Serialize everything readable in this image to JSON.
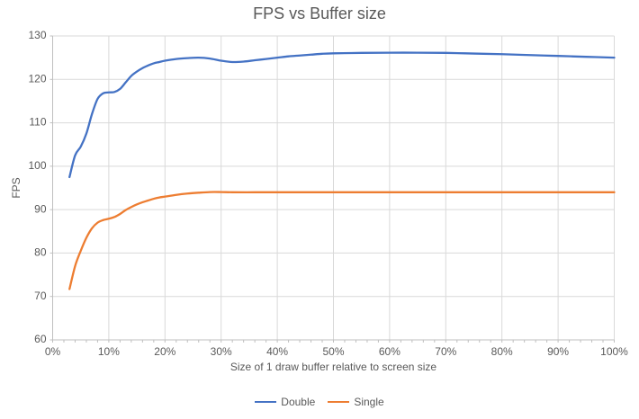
{
  "colors": {
    "background": "#FFFFFF",
    "grid": "#D9D9D9",
    "axis": "#BFBFBF",
    "text": "#595959",
    "series_double": "#4472C4",
    "series_single": "#ED7D31"
  },
  "chart_data": {
    "type": "line",
    "title": "FPS vs Buffer size",
    "xlabel": "Size of 1 draw buffer relative to screen size",
    "ylabel": "FPS",
    "xlim": [
      0,
      100
    ],
    "ylim": [
      60,
      130
    ],
    "grid": true,
    "legend_position": "bottom",
    "x_tick_values": [
      0,
      10,
      20,
      30,
      40,
      50,
      60,
      70,
      80,
      90,
      100
    ],
    "x_ticks": [
      "0%",
      "10%",
      "20%",
      "30%",
      "40%",
      "50%",
      "60%",
      "70%",
      "80%",
      "90%",
      "100%"
    ],
    "x_minor_tick_step_pct": 2,
    "y_ticks": [
      60,
      70,
      80,
      90,
      100,
      110,
      120,
      130
    ],
    "line_style": "smooth",
    "series": [
      {
        "name": "Double",
        "color": "#4472C4",
        "points": [
          [
            3,
            97.5
          ],
          [
            4,
            102.5
          ],
          [
            5,
            104.5
          ],
          [
            6,
            107.5
          ],
          [
            7,
            112
          ],
          [
            8,
            115.5
          ],
          [
            9,
            116.8
          ],
          [
            10,
            117
          ],
          [
            11,
            117.1
          ],
          [
            12,
            117.8
          ],
          [
            13,
            119.3
          ],
          [
            14,
            120.8
          ],
          [
            15,
            121.8
          ],
          [
            16,
            122.6
          ],
          [
            17,
            123.2
          ],
          [
            18,
            123.7
          ],
          [
            19,
            124
          ],
          [
            20,
            124.3
          ],
          [
            22,
            124.7
          ],
          [
            24,
            124.9
          ],
          [
            26,
            125
          ],
          [
            28,
            124.8
          ],
          [
            30,
            124.3
          ],
          [
            32,
            124
          ],
          [
            34,
            124.1
          ],
          [
            36,
            124.4
          ],
          [
            38,
            124.7
          ],
          [
            40,
            125
          ],
          [
            42,
            125.3
          ],
          [
            44,
            125.5
          ],
          [
            46,
            125.7
          ],
          [
            48,
            125.9
          ],
          [
            50,
            126
          ],
          [
            55,
            126.1
          ],
          [
            60,
            126.15
          ],
          [
            65,
            126.15
          ],
          [
            70,
            126.1
          ],
          [
            75,
            125.95
          ],
          [
            80,
            125.8
          ],
          [
            85,
            125.6
          ],
          [
            90,
            125.4
          ],
          [
            95,
            125.2
          ],
          [
            100,
            125
          ]
        ]
      },
      {
        "name": "Single",
        "color": "#ED7D31",
        "points": [
          [
            3,
            71.7
          ],
          [
            4,
            77
          ],
          [
            5,
            80.5
          ],
          [
            6,
            83.5
          ],
          [
            7,
            85.7
          ],
          [
            8,
            87
          ],
          [
            9,
            87.6
          ],
          [
            10,
            87.9
          ],
          [
            11,
            88.3
          ],
          [
            12,
            89
          ],
          [
            13,
            89.9
          ],
          [
            14,
            90.6
          ],
          [
            15,
            91.2
          ],
          [
            16,
            91.7
          ],
          [
            17,
            92.1
          ],
          [
            18,
            92.5
          ],
          [
            19,
            92.8
          ],
          [
            20,
            93
          ],
          [
            22,
            93.4
          ],
          [
            24,
            93.7
          ],
          [
            26,
            93.9
          ],
          [
            28,
            94.05
          ],
          [
            30,
            94.05
          ],
          [
            32,
            94
          ],
          [
            36,
            94
          ],
          [
            40,
            94
          ],
          [
            45,
            94
          ],
          [
            50,
            94
          ],
          [
            55,
            94
          ],
          [
            60,
            94
          ],
          [
            65,
            94
          ],
          [
            70,
            94
          ],
          [
            75,
            94
          ],
          [
            80,
            94
          ],
          [
            85,
            94
          ],
          [
            90,
            94
          ],
          [
            95,
            94
          ],
          [
            100,
            94
          ]
        ]
      }
    ]
  }
}
